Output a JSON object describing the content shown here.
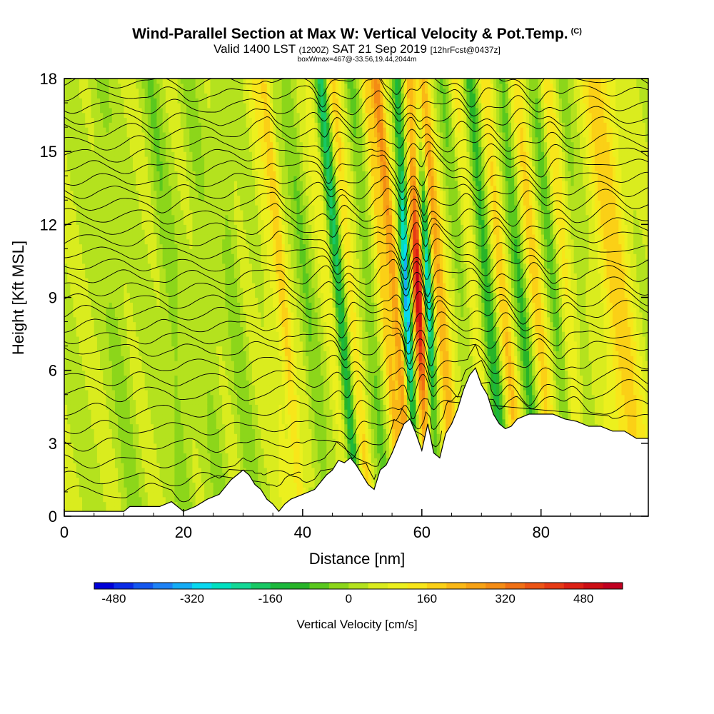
{
  "title": {
    "main": "Wind-Parallel Section at Max W: Vertical Velocity & Pot.Temp.",
    "copyright": "(C)",
    "valid_prefix": "Valid 1400 LST",
    "valid_z": "(1200Z)",
    "valid_date": "SAT 21 Sep 2019",
    "fcst": "[12hrFcst@0437z]",
    "box": "boxWmax=467@-33.56,19.44,2044m"
  },
  "chart_data": {
    "type": "heatmap",
    "xlabel": "Distance [nm]",
    "ylabel": "Height [Kft MSL]",
    "xlim": [
      0,
      98
    ],
    "ylim": [
      0,
      18
    ],
    "xticks": [
      0,
      20,
      40,
      60,
      80
    ],
    "yticks": [
      0,
      3,
      6,
      9,
      12,
      15,
      18
    ],
    "field": "Vertical Velocity [cm/s] with potential temperature contours",
    "colorbar": {
      "label": "Vertical Velocity [cm/s]",
      "tick_labels": [
        "-480",
        "-320",
        "-160",
        "0",
        "160",
        "320",
        "480"
      ],
      "tick_values": [
        -480,
        -320,
        -160,
        0,
        160,
        320,
        480
      ],
      "range": [
        -520,
        560
      ],
      "colors": [
        "#0000d8",
        "#0a2be6",
        "#1457ee",
        "#1e82f5",
        "#15acf5",
        "#09d8f0",
        "#00e0c0",
        "#13d896",
        "#18c864",
        "#1cb83c",
        "#28b428",
        "#5ac81e",
        "#8cd61a",
        "#b4e21e",
        "#daec1e",
        "#ecf01e",
        "#f8e61a",
        "#fbd016",
        "#fab816",
        "#f7a214",
        "#f48c14",
        "#f07014",
        "#ec5414",
        "#e63a14",
        "#dc2014",
        "#cc0e14",
        "#c00020"
      ]
    },
    "terrain_kft": [
      [
        0,
        0.2
      ],
      [
        10,
        0.2
      ],
      [
        11,
        0.4
      ],
      [
        16,
        0.4
      ],
      [
        18,
        0.6
      ],
      [
        20,
        0.2
      ],
      [
        22,
        0.4
      ],
      [
        24,
        0.7
      ],
      [
        26,
        0.9
      ],
      [
        28,
        1.5
      ],
      [
        29,
        1.7
      ],
      [
        30,
        1.9
      ],
      [
        31,
        1.7
      ],
      [
        32,
        1.3
      ],
      [
        33,
        1.1
      ],
      [
        34,
        0.7
      ],
      [
        35,
        0.5
      ],
      [
        36,
        0.2
      ],
      [
        37,
        0.5
      ],
      [
        38,
        0.7
      ],
      [
        40,
        0.9
      ],
      [
        42,
        1.1
      ],
      [
        44,
        1.7
      ],
      [
        45,
        1.9
      ],
      [
        46,
        2.3
      ],
      [
        47,
        2.2
      ],
      [
        48,
        2.4
      ],
      [
        49,
        2.1
      ],
      [
        50,
        1.7
      ],
      [
        51,
        1.3
      ],
      [
        52,
        1.1
      ],
      [
        53,
        1.9
      ],
      [
        54,
        2.1
      ],
      [
        55,
        2.6
      ],
      [
        56,
        3.2
      ],
      [
        57,
        3.8
      ],
      [
        58,
        4.0
      ],
      [
        59,
        3.4
      ],
      [
        60,
        2.7
      ],
      [
        61,
        3.8
      ],
      [
        62,
        2.6
      ],
      [
        63,
        2.4
      ],
      [
        64,
        3.4
      ],
      [
        65,
        3.8
      ],
      [
        66,
        4.4
      ],
      [
        67,
        5.2
      ],
      [
        68,
        5.8
      ],
      [
        69,
        6.1
      ],
      [
        70,
        5.4
      ],
      [
        71,
        5.0
      ],
      [
        72,
        4.2
      ],
      [
        73,
        3.8
      ],
      [
        74,
        3.6
      ],
      [
        75,
        3.7
      ],
      [
        76,
        4.0
      ],
      [
        78,
        4.2
      ],
      [
        80,
        4.2
      ],
      [
        82,
        4.2
      ],
      [
        84,
        4.0
      ],
      [
        86,
        3.9
      ],
      [
        88,
        3.7
      ],
      [
        90,
        3.7
      ],
      [
        92,
        3.5
      ],
      [
        94,
        3.5
      ],
      [
        96,
        3.2
      ],
      [
        98,
        3.2
      ]
    ],
    "features": [
      {
        "x": 9.0,
        "w": 1.6,
        "value": -40
      },
      {
        "x": 18.0,
        "w": 1.4,
        "value": -60
      },
      {
        "x": 24.0,
        "w": 1.4,
        "value": -40
      },
      {
        "x": 29.0,
        "w": 1.2,
        "value": -50
      },
      {
        "x": 35.0,
        "w": 1.2,
        "value": 60
      },
      {
        "x": 37.0,
        "w": 1.0,
        "value": 130
      },
      {
        "x": 41.0,
        "w": 1.2,
        "value": -60
      },
      {
        "x": 44.5,
        "w": 1.1,
        "value": 60
      },
      {
        "x": 46.5,
        "w": 0.9,
        "value": -200
      },
      {
        "x": 48.5,
        "w": 1.0,
        "value": 130
      },
      {
        "x": 51.5,
        "w": 1.0,
        "value": -80
      },
      {
        "x": 54.0,
        "w": 0.9,
        "value": 150
      },
      {
        "x": 55.8,
        "w": 1.0,
        "value": 250
      },
      {
        "x": 57.6,
        "w": 0.75,
        "value": -420
      },
      {
        "x": 59.6,
        "w": 0.9,
        "value": 480
      },
      {
        "x": 61.3,
        "w": 0.75,
        "value": -340
      },
      {
        "x": 63.3,
        "w": 1.3,
        "value": 220
      },
      {
        "x": 67.0,
        "w": 1.2,
        "value": -60
      },
      {
        "x": 69.0,
        "w": 1.2,
        "value": 90
      },
      {
        "x": 71.5,
        "w": 1.2,
        "value": -150
      },
      {
        "x": 74.0,
        "w": 1.2,
        "value": 150
      },
      {
        "x": 77.0,
        "w": 1.1,
        "value": -110
      },
      {
        "x": 79.5,
        "w": 1.3,
        "value": 130
      },
      {
        "x": 82.5,
        "w": 1.1,
        "value": -80
      },
      {
        "x": 84.5,
        "w": 1.2,
        "value": 100
      },
      {
        "x": 87.0,
        "w": 1.0,
        "value": -40
      },
      {
        "x": 93.0,
        "w": 3.0,
        "value": 140
      }
    ],
    "isentropes_kft": [
      0.9,
      1.5,
      2.2,
      2.9,
      3.6,
      4.3,
      5.0,
      5.6,
      6.2,
      6.8,
      7.3,
      7.8,
      8.3,
      8.8,
      9.3,
      9.8,
      10.3,
      10.8,
      11.3,
      11.8,
      12.3,
      12.8,
      13.3,
      13.8,
      14.3,
      14.8,
      15.3,
      15.8,
      16.3,
      16.8,
      17.3,
      17.8
    ]
  }
}
